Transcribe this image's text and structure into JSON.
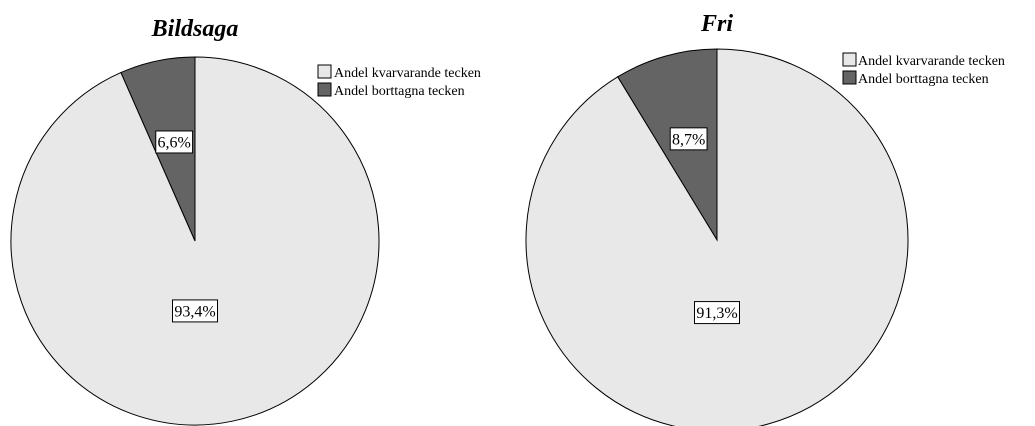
{
  "chart_data": [
    {
      "type": "pie",
      "title": "Bildsaga",
      "categories": [
        "Andel kvarvarande tecken",
        "Andel borttagna tecken"
      ],
      "values": [
        93.4,
        6.6
      ],
      "value_labels": [
        "93,4%",
        "6,6%"
      ],
      "colors": [
        "#e8e8e8",
        "#646464"
      ],
      "legend": {
        "placement": "top-right",
        "entries": [
          "Andel kvarvarande tecken",
          "Andel borttagna tecken"
        ]
      }
    },
    {
      "type": "pie",
      "title": "Fri",
      "categories": [
        "Andel kvarvarande tecken",
        "Andel borttagna tecken"
      ],
      "values": [
        91.3,
        8.7
      ],
      "value_labels": [
        "91,3%",
        "8,7%"
      ],
      "colors": [
        "#e8e8e8",
        "#646464"
      ],
      "legend": {
        "placement": "top-right",
        "entries": [
          "Andel kvarvarande tecken",
          "Andel borttagna tecken"
        ]
      }
    }
  ]
}
